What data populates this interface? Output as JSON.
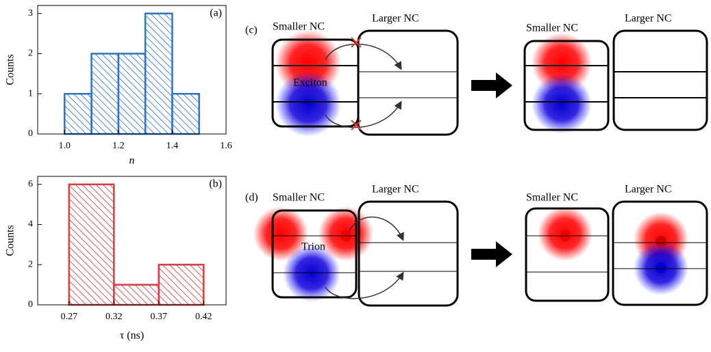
{
  "chart_data": [
    {
      "type": "histogram",
      "panel_label": "(a)",
      "xlabel": "n",
      "ylabel": "Counts",
      "color": "#2a74d1",
      "bins": [
        1.0,
        1.1,
        1.2,
        1.3,
        1.4,
        1.5
      ],
      "values": [
        1,
        2,
        2,
        3,
        1
      ],
      "xlim": [
        0.9,
        1.6
      ],
      "xticks": [
        {
          "value": 1,
          "label": "1.0"
        },
        1.2,
        1.4,
        1.6
      ],
      "ylim": [
        0,
        3.2
      ],
      "yticks": [
        0,
        1,
        2,
        3
      ]
    },
    {
      "type": "histogram",
      "panel_label": "(b)",
      "xlabel": "τ (ns)",
      "ylabel": "Counts",
      "color": "#e8363b",
      "bins": [
        0.27,
        0.32,
        0.37,
        0.42
      ],
      "values": [
        6,
        1,
        2
      ],
      "xlim": [
        0.235,
        0.445
      ],
      "xticks": [
        0.27,
        0.32,
        0.37,
        0.42
      ],
      "ylim": [
        0,
        6.4
      ],
      "yticks": [
        0,
        2,
        4,
        6
      ]
    }
  ],
  "diagrams": {
    "c": {
      "label": "(c)",
      "before": {
        "smaller": "Smaller NC",
        "larger": "Larger NC",
        "particle": "Exciton"
      },
      "after": {
        "smaller": "Smaller NC",
        "larger": "Larger NC"
      }
    },
    "d": {
      "label": "(d)",
      "before": {
        "smaller": "Smaller NC",
        "larger": "Larger NC",
        "particle": "Trion"
      },
      "after": {
        "smaller": "Smaller NC",
        "larger": "Larger NC"
      }
    }
  }
}
